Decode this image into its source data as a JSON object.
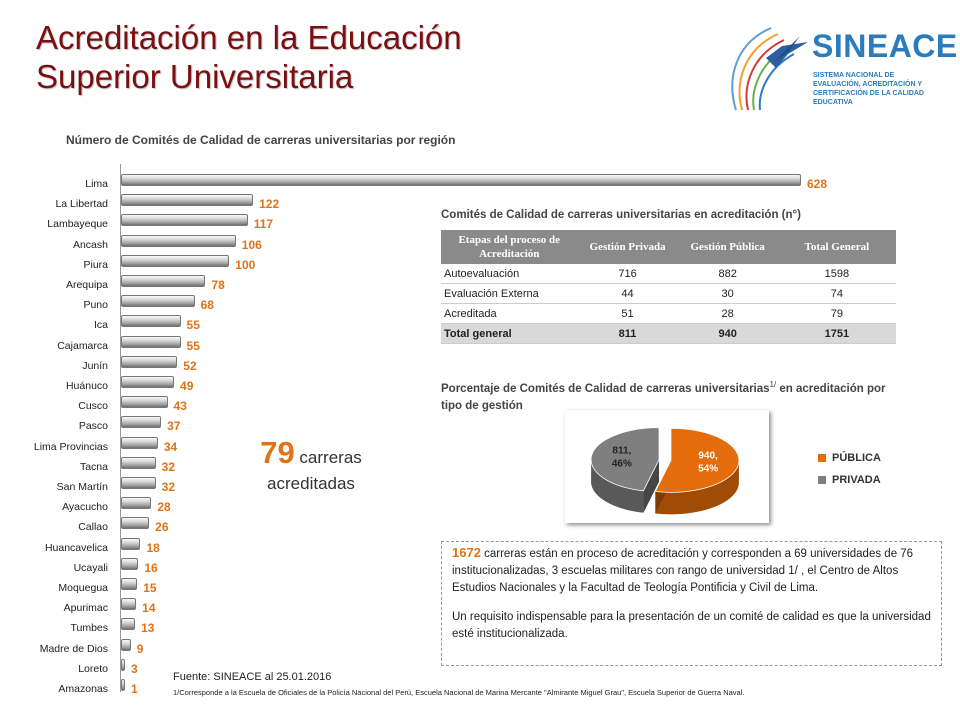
{
  "header": {
    "title_line1": "Acreditación en la Educación",
    "title_line2": "Superior Universitaria"
  },
  "logo": {
    "name": "SINEACE",
    "subtitle": "SISTEMA NACIONAL DE EVALUACIÓN, ACREDITACIÓN Y CERTIFICACIÓN DE LA CALIDAD EDUCATIVA"
  },
  "chart_data": [
    {
      "type": "bar",
      "orientation": "horizontal",
      "title": "Número de Comités de Calidad de carreras universitarias por región",
      "categories": [
        "Lima",
        "La Libertad",
        "Lambayeque",
        "Ancash",
        "Piura",
        "Arequipa",
        "Puno",
        "Ica",
        "Cajamarca",
        "Junín",
        "Huánuco",
        "Cusco",
        "Pasco",
        "Lima Provincias",
        "Tacna",
        "San Martín",
        "Ayacucho",
        "Callao",
        "Huancavelica",
        "Ucayali",
        "Moquegua",
        "Apurimac",
        "Tumbes",
        "Madre de Dios",
        "Loreto",
        "Amazonas"
      ],
      "values": [
        628,
        122,
        117,
        106,
        100,
        78,
        68,
        55,
        55,
        52,
        49,
        43,
        37,
        34,
        32,
        32,
        28,
        26,
        18,
        16,
        15,
        14,
        13,
        9,
        3,
        1
      ],
      "xlim": [
        0,
        628
      ],
      "data_labels": true,
      "bar_color": "#a6a6a6",
      "label_color": "#e07318"
    },
    {
      "type": "table",
      "title": "Comités de Calidad de carreras universitarias en acreditación  (n°)",
      "columns": [
        "Etapas del proceso de Acreditación",
        "Gestión Privada",
        "Gestión Pública",
        "Total General"
      ],
      "rows": [
        [
          "Autoevaluación",
          "716",
          "882",
          "1598"
        ],
        [
          "Evaluación Externa",
          "44",
          "30",
          "74"
        ],
        [
          "Acreditada",
          "51",
          "28",
          "79"
        ],
        [
          "Total general",
          "811",
          "940",
          "1751"
        ]
      ]
    },
    {
      "type": "pie",
      "title": "Porcentaje de Comités de Calidad de carreras universitarias",
      "title_sup": "1/",
      "title_end": " en acreditación por tipo de gestión",
      "series": [
        {
          "name": "PÚBLICA",
          "value": 940,
          "percent": 54,
          "label": "940, 54%",
          "color": "#e46c0a"
        },
        {
          "name": "PRIVADA",
          "value": 811,
          "percent": 46,
          "label": "811, 46%",
          "color": "#7f7f7f"
        }
      ],
      "legend": "right"
    }
  ],
  "highlight": {
    "number": "79",
    "word1": "carreras",
    "word2": "acreditadas"
  },
  "info": {
    "number": "1672",
    "text1": " carreras están en proceso de acreditación y corresponden  a 69 universidades de 76 institucionalizadas, 3 escuelas militares con rango de universidad 1/ ,  el Centro de Altos Estudios Nacionales  y la Facultad de Teología Pontificia y Civil de Lima.",
    "text2": "Un requisito indispensable para la presentación de un comité de calidad es que la universidad esté institucionalizada."
  },
  "source": "Fuente: SINEACE al  25.01.2016",
  "footnote": "1/Corresponde a la Escuela de Oficiales de la Policía Nacional del Perú, Escuela Nacional de Marina Mercante \"Almirante Miguel Grau\", Escuela Superior de Guerra Naval."
}
